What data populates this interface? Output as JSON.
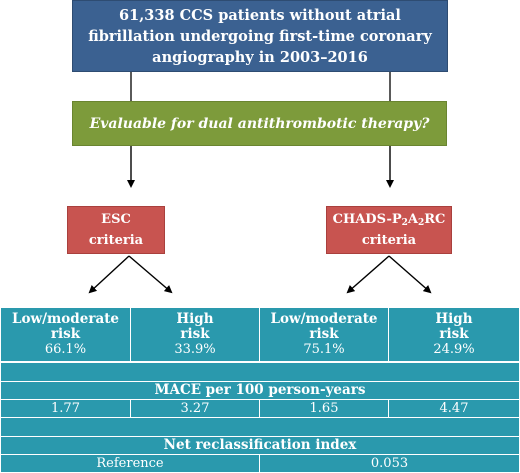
{
  "flow": {
    "population": "61,338 CCS patients without atrial fibrillation undergoing first-time coronary angiography in 2003–2016",
    "question": "Evaluable for dual antithrombotic therapy?",
    "esc_line1": "ESC",
    "esc_line2": "criteria",
    "chads_prefix": "CHADS-P",
    "chads_sub1": "2",
    "chads_mid": "A",
    "chads_sub2": "2",
    "chads_suffix": "RC",
    "chads_line2": "criteria"
  },
  "table": {
    "groups": [
      {
        "label_line1": "Low/moderate",
        "label_line2": "risk",
        "share": "66.1%",
        "mace": "1.77"
      },
      {
        "label_line1": "High",
        "label_line2": "risk",
        "share": "33.9%",
        "mace": "3.27"
      },
      {
        "label_line1": "Low/moderate",
        "label_line2": "risk",
        "share": "75.1%",
        "mace": "1.65"
      },
      {
        "label_line1": "High",
        "label_line2": "risk",
        "share": "24.9%",
        "mace": "4.47"
      }
    ],
    "mace_title": "MACE per 100 person-years",
    "nri_title": "Net reclassification index",
    "nri_esc": "Reference",
    "nri_chads": "0.053"
  },
  "colors": {
    "population_box": "#3b6191",
    "question_box": "#7d9b3b",
    "criteria_box": "#c85450",
    "table_bg": "#2a99ad"
  }
}
